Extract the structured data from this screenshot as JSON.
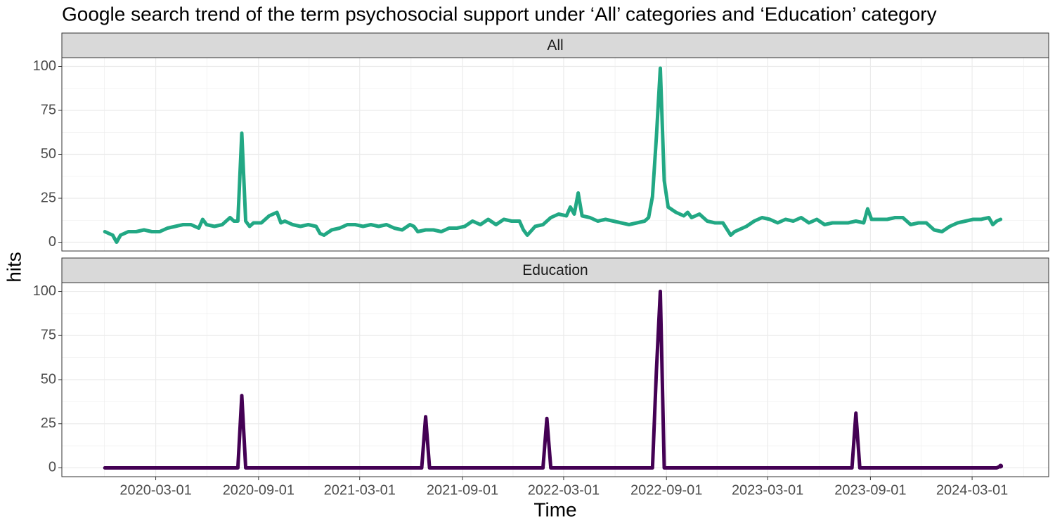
{
  "title": "Google search trend of the term psychosocial support under ‘All’ categories and ‘Education’ category",
  "xlabel": "Time",
  "ylabel": "hits",
  "chart_data": [
    {
      "type": "line",
      "title": "All",
      "color": "#22a884",
      "ylim": [
        -5,
        105
      ],
      "yticks": [
        0,
        25,
        50,
        75,
        100
      ],
      "grid": true,
      "x": [
        "2019-12-01",
        "2019-12-08",
        "2019-12-15",
        "2019-12-22",
        "2019-12-29",
        "2020-01-12",
        "2020-01-26",
        "2020-02-09",
        "2020-02-23",
        "2020-03-08",
        "2020-03-22",
        "2020-04-05",
        "2020-04-19",
        "2020-05-03",
        "2020-05-17",
        "2020-05-24",
        "2020-05-31",
        "2020-06-14",
        "2020-06-28",
        "2020-07-12",
        "2020-07-19",
        "2020-07-26",
        "2020-08-02",
        "2020-08-09",
        "2020-08-16",
        "2020-08-23",
        "2020-09-06",
        "2020-09-20",
        "2020-10-04",
        "2020-10-11",
        "2020-10-18",
        "2020-11-01",
        "2020-11-15",
        "2020-11-29",
        "2020-12-13",
        "2020-12-20",
        "2020-12-27",
        "2021-01-10",
        "2021-01-24",
        "2021-02-07",
        "2021-02-21",
        "2021-03-07",
        "2021-03-21",
        "2021-04-04",
        "2021-04-18",
        "2021-05-02",
        "2021-05-16",
        "2021-05-30",
        "2021-06-06",
        "2021-06-13",
        "2021-06-27",
        "2021-07-11",
        "2021-07-25",
        "2021-08-08",
        "2021-08-22",
        "2021-09-05",
        "2021-09-19",
        "2021-10-03",
        "2021-10-17",
        "2021-10-31",
        "2021-11-14",
        "2021-11-28",
        "2021-12-12",
        "2021-12-19",
        "2021-12-26",
        "2022-01-09",
        "2022-01-23",
        "2022-02-06",
        "2022-02-20",
        "2022-03-06",
        "2022-03-13",
        "2022-03-20",
        "2022-03-27",
        "2022-04-03",
        "2022-04-17",
        "2022-05-01",
        "2022-05-15",
        "2022-05-29",
        "2022-06-12",
        "2022-06-26",
        "2022-07-10",
        "2022-07-24",
        "2022-07-31",
        "2022-08-07",
        "2022-08-14",
        "2022-08-21",
        "2022-08-28",
        "2022-09-04",
        "2022-09-18",
        "2022-10-02",
        "2022-10-09",
        "2022-10-16",
        "2022-10-30",
        "2022-11-13",
        "2022-11-27",
        "2022-12-11",
        "2022-12-25",
        "2023-01-01",
        "2023-01-08",
        "2023-01-22",
        "2023-02-05",
        "2023-02-19",
        "2023-03-05",
        "2023-03-19",
        "2023-04-02",
        "2023-04-16",
        "2023-04-30",
        "2023-05-14",
        "2023-05-28",
        "2023-06-11",
        "2023-06-25",
        "2023-07-09",
        "2023-07-23",
        "2023-08-06",
        "2023-08-20",
        "2023-08-27",
        "2023-09-03",
        "2023-09-17",
        "2023-10-01",
        "2023-10-15",
        "2023-10-29",
        "2023-11-12",
        "2023-11-26",
        "2023-12-10",
        "2023-12-24",
        "2024-01-07",
        "2024-01-21",
        "2024-02-04",
        "2024-02-18",
        "2024-03-03",
        "2024-03-17",
        "2024-03-31",
        "2024-04-07",
        "2024-04-14",
        "2024-04-21"
      ],
      "values": [
        6,
        5,
        4,
        0,
        4,
        6,
        6,
        7,
        6,
        6,
        8,
        9,
        10,
        10,
        8,
        13,
        10,
        9,
        10,
        14,
        12,
        12,
        62,
        12,
        9,
        11,
        11,
        15,
        17,
        11,
        12,
        10,
        9,
        10,
        9,
        5,
        4,
        7,
        8,
        10,
        10,
        9,
        10,
        9,
        10,
        8,
        7,
        10,
        9,
        6,
        7,
        7,
        6,
        8,
        8,
        9,
        12,
        10,
        13,
        10,
        13,
        12,
        12,
        7,
        4,
        9,
        10,
        14,
        16,
        15,
        20,
        16,
        28,
        15,
        14,
        12,
        13,
        12,
        11,
        10,
        11,
        12,
        14,
        26,
        60,
        99,
        35,
        20,
        17,
        15,
        17,
        14,
        16,
        12,
        11,
        11,
        4,
        6,
        7,
        9,
        12,
        14,
        13,
        11,
        13,
        12,
        14,
        11,
        13,
        10,
        11,
        11,
        11,
        12,
        11,
        19,
        13,
        13,
        13,
        14,
        14,
        10,
        11,
        11,
        7,
        6,
        9,
        11,
        12,
        13,
        13,
        14,
        10,
        12,
        13
      ]
    },
    {
      "type": "line",
      "title": "Education",
      "color": "#440154",
      "ylim": [
        -5,
        105
      ],
      "yticks": [
        0,
        25,
        50,
        75,
        100
      ],
      "grid": true,
      "xlim": [
        "2019-09-15",
        "2024-07-16"
      ],
      "xticks": [
        "2020-03-01",
        "2020-09-01",
        "2021-03-01",
        "2021-09-01",
        "2022-03-01",
        "2022-09-01",
        "2023-03-01",
        "2023-09-01",
        "2024-03-01"
      ],
      "x": [
        "2019-12-01",
        "2020-07-26",
        "2020-08-02",
        "2020-08-09",
        "2021-06-20",
        "2021-06-27",
        "2021-07-04",
        "2022-01-23",
        "2022-01-30",
        "2022-02-06",
        "2022-08-07",
        "2022-08-14",
        "2022-08-21",
        "2022-08-28",
        "2023-07-30",
        "2023-08-06",
        "2023-08-13",
        "2024-04-14",
        "2024-04-21"
      ],
      "values": [
        0,
        0,
        41,
        0,
        0,
        29,
        0,
        0,
        28,
        0,
        0,
        55,
        100,
        0,
        0,
        31,
        0,
        0,
        1
      ]
    }
  ]
}
